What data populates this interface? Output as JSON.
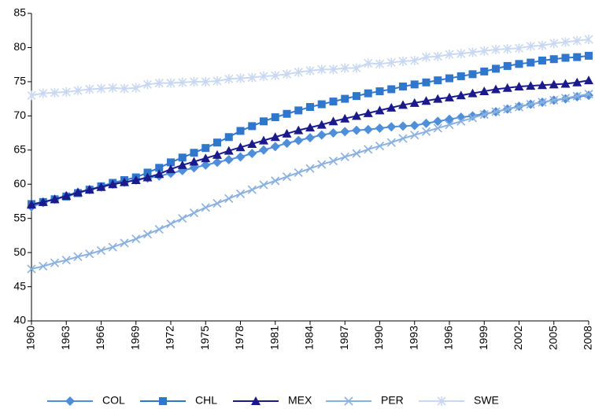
{
  "chart_data": {
    "type": "line",
    "x": [
      1960,
      1961,
      1962,
      1963,
      1964,
      1965,
      1966,
      1967,
      1968,
      1969,
      1970,
      1971,
      1972,
      1973,
      1974,
      1975,
      1976,
      1977,
      1978,
      1979,
      1980,
      1981,
      1982,
      1983,
      1984,
      1985,
      1986,
      1987,
      1988,
      1989,
      1990,
      1991,
      1992,
      1993,
      1994,
      1995,
      1996,
      1997,
      1998,
      1999,
      2000,
      2001,
      2002,
      2003,
      2004,
      2005,
      2006,
      2007,
      2008
    ],
    "xlim": [
      1960,
      2008
    ],
    "xticks": [
      1960,
      1963,
      1966,
      1969,
      1972,
      1975,
      1978,
      1981,
      1984,
      1987,
      1990,
      1993,
      1996,
      1999,
      2002,
      2005,
      2008
    ],
    "ylim": [
      40,
      85
    ],
    "yticks": [
      40,
      45,
      50,
      55,
      60,
      65,
      70,
      75,
      80,
      85
    ],
    "grid": false,
    "legend": "bottom",
    "series": [
      {
        "name": "COL",
        "color": "#4f8ed9",
        "marker": "diamond",
        "values": [
          56.7,
          57.3,
          57.8,
          58.3,
          58.8,
          59.2,
          59.6,
          60.0,
          60.3,
          60.6,
          60.9,
          61.2,
          61.6,
          62.0,
          62.4,
          62.8,
          63.2,
          63.6,
          64.0,
          64.5,
          65.0,
          65.5,
          66.0,
          66.4,
          66.8,
          67.2,
          67.5,
          67.7,
          67.9,
          68.0,
          68.2,
          68.4,
          68.5,
          68.6,
          68.9,
          69.2,
          69.5,
          69.8,
          70.0,
          70.3,
          70.6,
          71.0,
          71.4,
          71.7,
          72.0,
          72.3,
          72.5,
          72.8,
          73.0
        ]
      },
      {
        "name": "CHL",
        "color": "#2f77cc",
        "marker": "square",
        "values": [
          57.1,
          57.4,
          57.8,
          58.2,
          58.7,
          59.2,
          59.7,
          60.2,
          60.6,
          61.0,
          61.7,
          62.4,
          63.2,
          63.9,
          64.6,
          65.3,
          66.1,
          66.9,
          67.8,
          68.5,
          69.2,
          69.8,
          70.3,
          70.8,
          71.3,
          71.7,
          72.1,
          72.5,
          72.9,
          73.3,
          73.6,
          73.9,
          74.3,
          74.6,
          74.9,
          75.2,
          75.5,
          75.8,
          76.1,
          76.5,
          76.9,
          77.3,
          77.6,
          77.8,
          78.1,
          78.3,
          78.5,
          78.6,
          78.8
        ]
      },
      {
        "name": "MEX",
        "color": "#1a1a8c",
        "marker": "triangle",
        "values": [
          57.0,
          57.4,
          57.8,
          58.3,
          58.8,
          59.2,
          59.6,
          60.0,
          60.3,
          60.6,
          61.0,
          61.5,
          62.2,
          62.8,
          63.3,
          63.8,
          64.3,
          64.9,
          65.4,
          65.9,
          66.4,
          66.9,
          67.4,
          67.9,
          68.3,
          68.7,
          69.2,
          69.6,
          70.0,
          70.4,
          70.8,
          71.2,
          71.6,
          71.9,
          72.2,
          72.5,
          72.7,
          73.0,
          73.3,
          73.6,
          73.9,
          74.1,
          74.3,
          74.4,
          74.5,
          74.6,
          74.7,
          74.9,
          75.2
        ]
      },
      {
        "name": "PER",
        "color": "#8ab0e0",
        "marker": "x",
        "values": [
          47.6,
          48.0,
          48.5,
          48.9,
          49.4,
          49.8,
          50.3,
          50.8,
          51.4,
          52.0,
          52.7,
          53.4,
          54.2,
          55.0,
          55.8,
          56.6,
          57.2,
          57.9,
          58.6,
          59.2,
          59.9,
          60.5,
          61.1,
          61.7,
          62.3,
          62.9,
          63.4,
          64.0,
          64.5,
          65.1,
          65.6,
          66.1,
          66.7,
          67.2,
          67.7,
          68.2,
          68.7,
          69.2,
          69.7,
          70.2,
          70.6,
          71.0,
          71.3,
          71.7,
          72.0,
          72.3,
          72.6,
          72.9,
          73.2
        ]
      },
      {
        "name": "SWE",
        "color": "#c9d8f2",
        "marker": "star",
        "values": [
          73.0,
          73.3,
          73.4,
          73.5,
          73.7,
          73.9,
          74.0,
          74.1,
          74.0,
          74.1,
          74.6,
          74.8,
          74.8,
          74.9,
          75.0,
          75.0,
          75.1,
          75.4,
          75.5,
          75.6,
          75.8,
          75.9,
          76.1,
          76.4,
          76.6,
          76.8,
          76.8,
          77.0,
          77.0,
          77.7,
          77.6,
          77.8,
          78.0,
          78.1,
          78.6,
          78.7,
          79.0,
          79.1,
          79.3,
          79.5,
          79.7,
          79.8,
          79.9,
          80.2,
          80.3,
          80.6,
          80.8,
          81.0,
          81.2
        ]
      }
    ]
  }
}
